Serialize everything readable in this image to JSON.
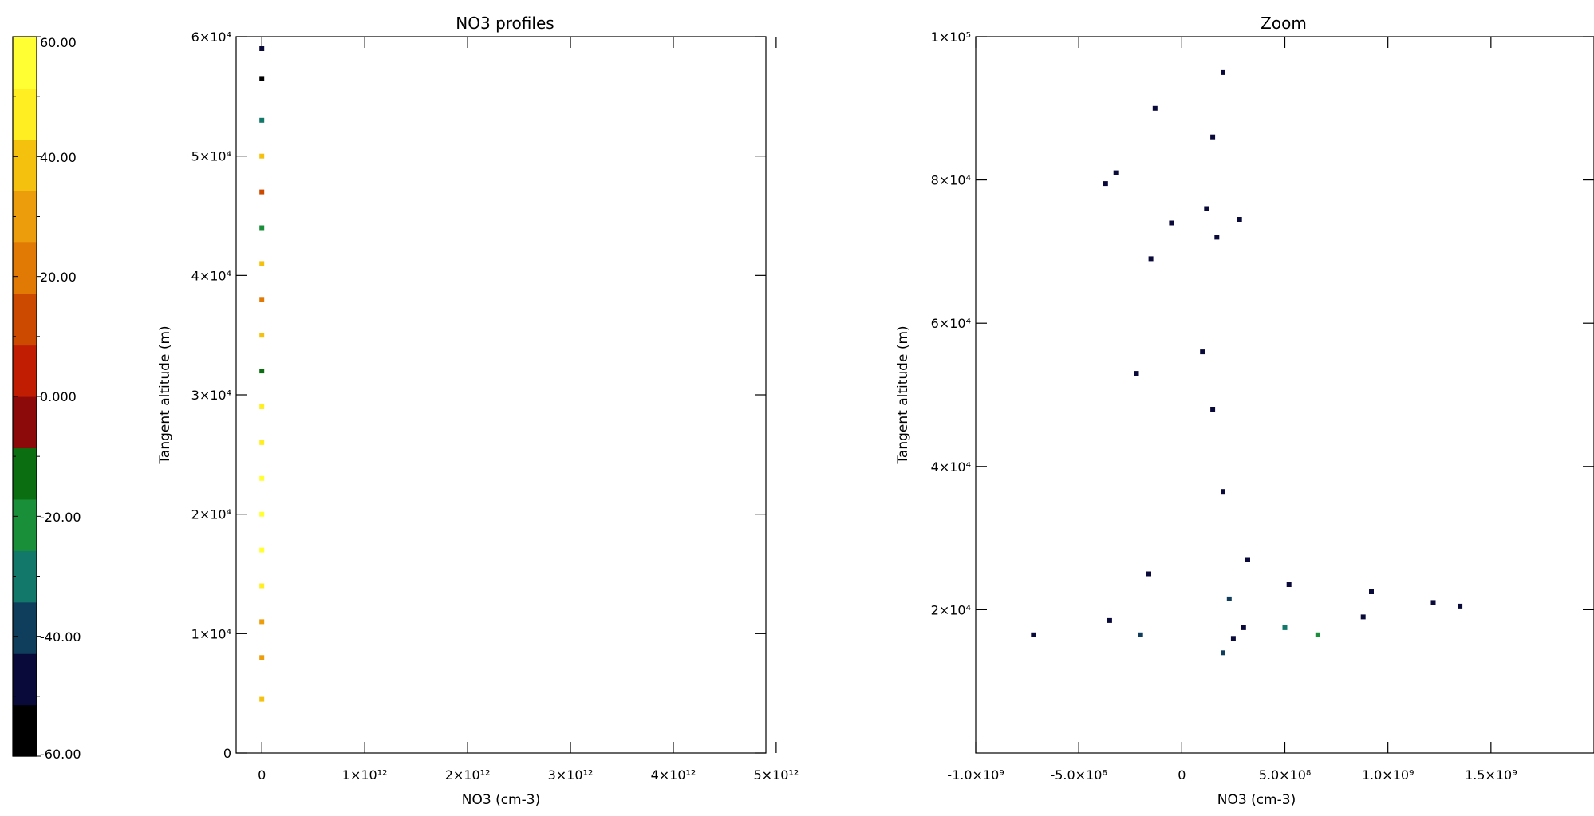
{
  "colorbar": {
    "labels": [
      "60.00",
      "40.00",
      "20.00",
      "0.000",
      "-20.00",
      "-40.00",
      "-60.00"
    ],
    "range": [
      -60,
      60
    ],
    "bands": [
      "#000000",
      "#0a0a3a",
      "#0f3d5c",
      "#12786a",
      "#1a8f3a",
      "#0b6e10",
      "#8c0a0a",
      "#c01d02",
      "#cc4a00",
      "#e07a05",
      "#eb9d0b",
      "#f4c20e",
      "#ffee22",
      "#ffff33"
    ]
  },
  "chart_data": [
    {
      "type": "scatter",
      "title": "NO3 profiles",
      "xlabel": "NO3 (cm-3)",
      "ylabel": "Tangent altitude (m)",
      "xlim": [
        -250000000000.0,
        4900000000000.0
      ],
      "ylim": [
        0,
        60000
      ],
      "x_tick_values": [
        0,
        1000000000000.0,
        2000000000000.0,
        3000000000000.0,
        4000000000000.0,
        5000000000000.0
      ],
      "x_tick_labels": [
        "0",
        "1×10¹²",
        "2×10¹²",
        "3×10¹²",
        "4×10¹²",
        "5×10¹²"
      ],
      "y_tick_values": [
        0,
        10000,
        20000,
        30000,
        40000,
        50000,
        60000
      ],
      "y_tick_labels": [
        "0",
        "1×10⁴",
        "2×10⁴",
        "3×10⁴",
        "4×10⁴",
        "5×10⁴",
        "6×10⁴"
      ],
      "points": [
        {
          "x": 0,
          "y": 4500,
          "c": 35
        },
        {
          "x": 0,
          "y": 8000,
          "c": 30
        },
        {
          "x": 0,
          "y": 11000,
          "c": 30
        },
        {
          "x": 0,
          "y": 14000,
          "c": 45
        },
        {
          "x": 0,
          "y": 17000,
          "c": 55
        },
        {
          "x": 0,
          "y": 20000,
          "c": 58
        },
        {
          "x": 0,
          "y": 23000,
          "c": 55
        },
        {
          "x": 0,
          "y": 26000,
          "c": 50
        },
        {
          "x": 0,
          "y": 29000,
          "c": 45
        },
        {
          "x": 0,
          "y": 32000,
          "c": -15
        },
        {
          "x": 0,
          "y": 35000,
          "c": 40
        },
        {
          "x": 0,
          "y": 38000,
          "c": 20
        },
        {
          "x": 0,
          "y": 41000,
          "c": 35
        },
        {
          "x": 0,
          "y": 44000,
          "c": -20
        },
        {
          "x": 0,
          "y": 47000,
          "c": 10
        },
        {
          "x": 0,
          "y": 50000,
          "c": 40
        },
        {
          "x": 0,
          "y": 53000,
          "c": -30
        },
        {
          "x": 0,
          "y": 56500,
          "c": -55
        },
        {
          "x": 0,
          "y": 59000,
          "c": -45
        }
      ]
    },
    {
      "type": "scatter",
      "title": "Zoom",
      "xlabel": "NO3 (cm-3)",
      "ylabel": "Tangent altitude (m)",
      "xlim": [
        -1000000000.0,
        2000000000.0
      ],
      "ylim": [
        0,
        100000
      ],
      "x_tick_values": [
        -1000000000.0,
        -500000000.0,
        0,
        500000000.0,
        1000000000.0,
        1500000000.0
      ],
      "x_tick_labels": [
        "-1.0×10⁹",
        "-5.0×10⁸",
        "0",
        "5.0×10⁸",
        "1.0×10⁹",
        "1.5×10⁹"
      ],
      "y_tick_values": [
        20000,
        40000,
        60000,
        80000,
        100000
      ],
      "y_tick_labels": [
        "2×10⁴",
        "4×10⁴",
        "6×10⁴",
        "8×10⁴",
        "1×10⁵"
      ],
      "points": [
        {
          "x": -720000000.0,
          "y": 16500,
          "c": -50
        },
        {
          "x": -350000000.0,
          "y": 18500,
          "c": -45
        },
        {
          "x": -370000000.0,
          "y": 79500,
          "c": -50
        },
        {
          "x": -320000000.0,
          "y": 81000,
          "c": -50
        },
        {
          "x": -130000000.0,
          "y": 90000,
          "c": -50
        },
        {
          "x": -150000000.0,
          "y": 69000,
          "c": -50
        },
        {
          "x": -220000000.0,
          "y": 53000,
          "c": -50
        },
        {
          "x": -50000000.0,
          "y": 74000,
          "c": -50
        },
        {
          "x": 150000000.0,
          "y": 86000,
          "c": -50
        },
        {
          "x": 200000000.0,
          "y": 95000,
          "c": -50
        },
        {
          "x": 280000000.0,
          "y": 74500,
          "c": -50
        },
        {
          "x": 120000000.0,
          "y": 76000,
          "c": -50
        },
        {
          "x": 170000000.0,
          "y": 72000,
          "c": -50
        },
        {
          "x": 100000000.0,
          "y": 56000,
          "c": -50
        },
        {
          "x": 150000000.0,
          "y": 48000,
          "c": -50
        },
        {
          "x": 200000000.0,
          "y": 36500,
          "c": -50
        },
        {
          "x": 320000000.0,
          "y": 27000,
          "c": -50
        },
        {
          "x": 520000000.0,
          "y": 23500,
          "c": -50
        },
        {
          "x": 920000000.0,
          "y": 22500,
          "c": -50
        },
        {
          "x": 880000000.0,
          "y": 19000,
          "c": -50
        },
        {
          "x": 1220000000.0,
          "y": 21000,
          "c": -50
        },
        {
          "x": 1350000000.0,
          "y": 20500,
          "c": -50
        },
        {
          "x": 500000000.0,
          "y": 17500,
          "c": -30
        },
        {
          "x": 660000000.0,
          "y": 16500,
          "c": -20
        },
        {
          "x": -160000000.0,
          "y": 25000,
          "c": -50
        },
        {
          "x": 250000000.0,
          "y": 16000,
          "c": -50
        },
        {
          "x": 300000000.0,
          "y": 17500,
          "c": -45
        },
        {
          "x": -200000000.0,
          "y": 16500,
          "c": -40
        },
        {
          "x": 230000000.0,
          "y": 21500,
          "c": -40
        },
        {
          "x": 200000000.0,
          "y": 14000,
          "c": -40
        }
      ]
    }
  ]
}
